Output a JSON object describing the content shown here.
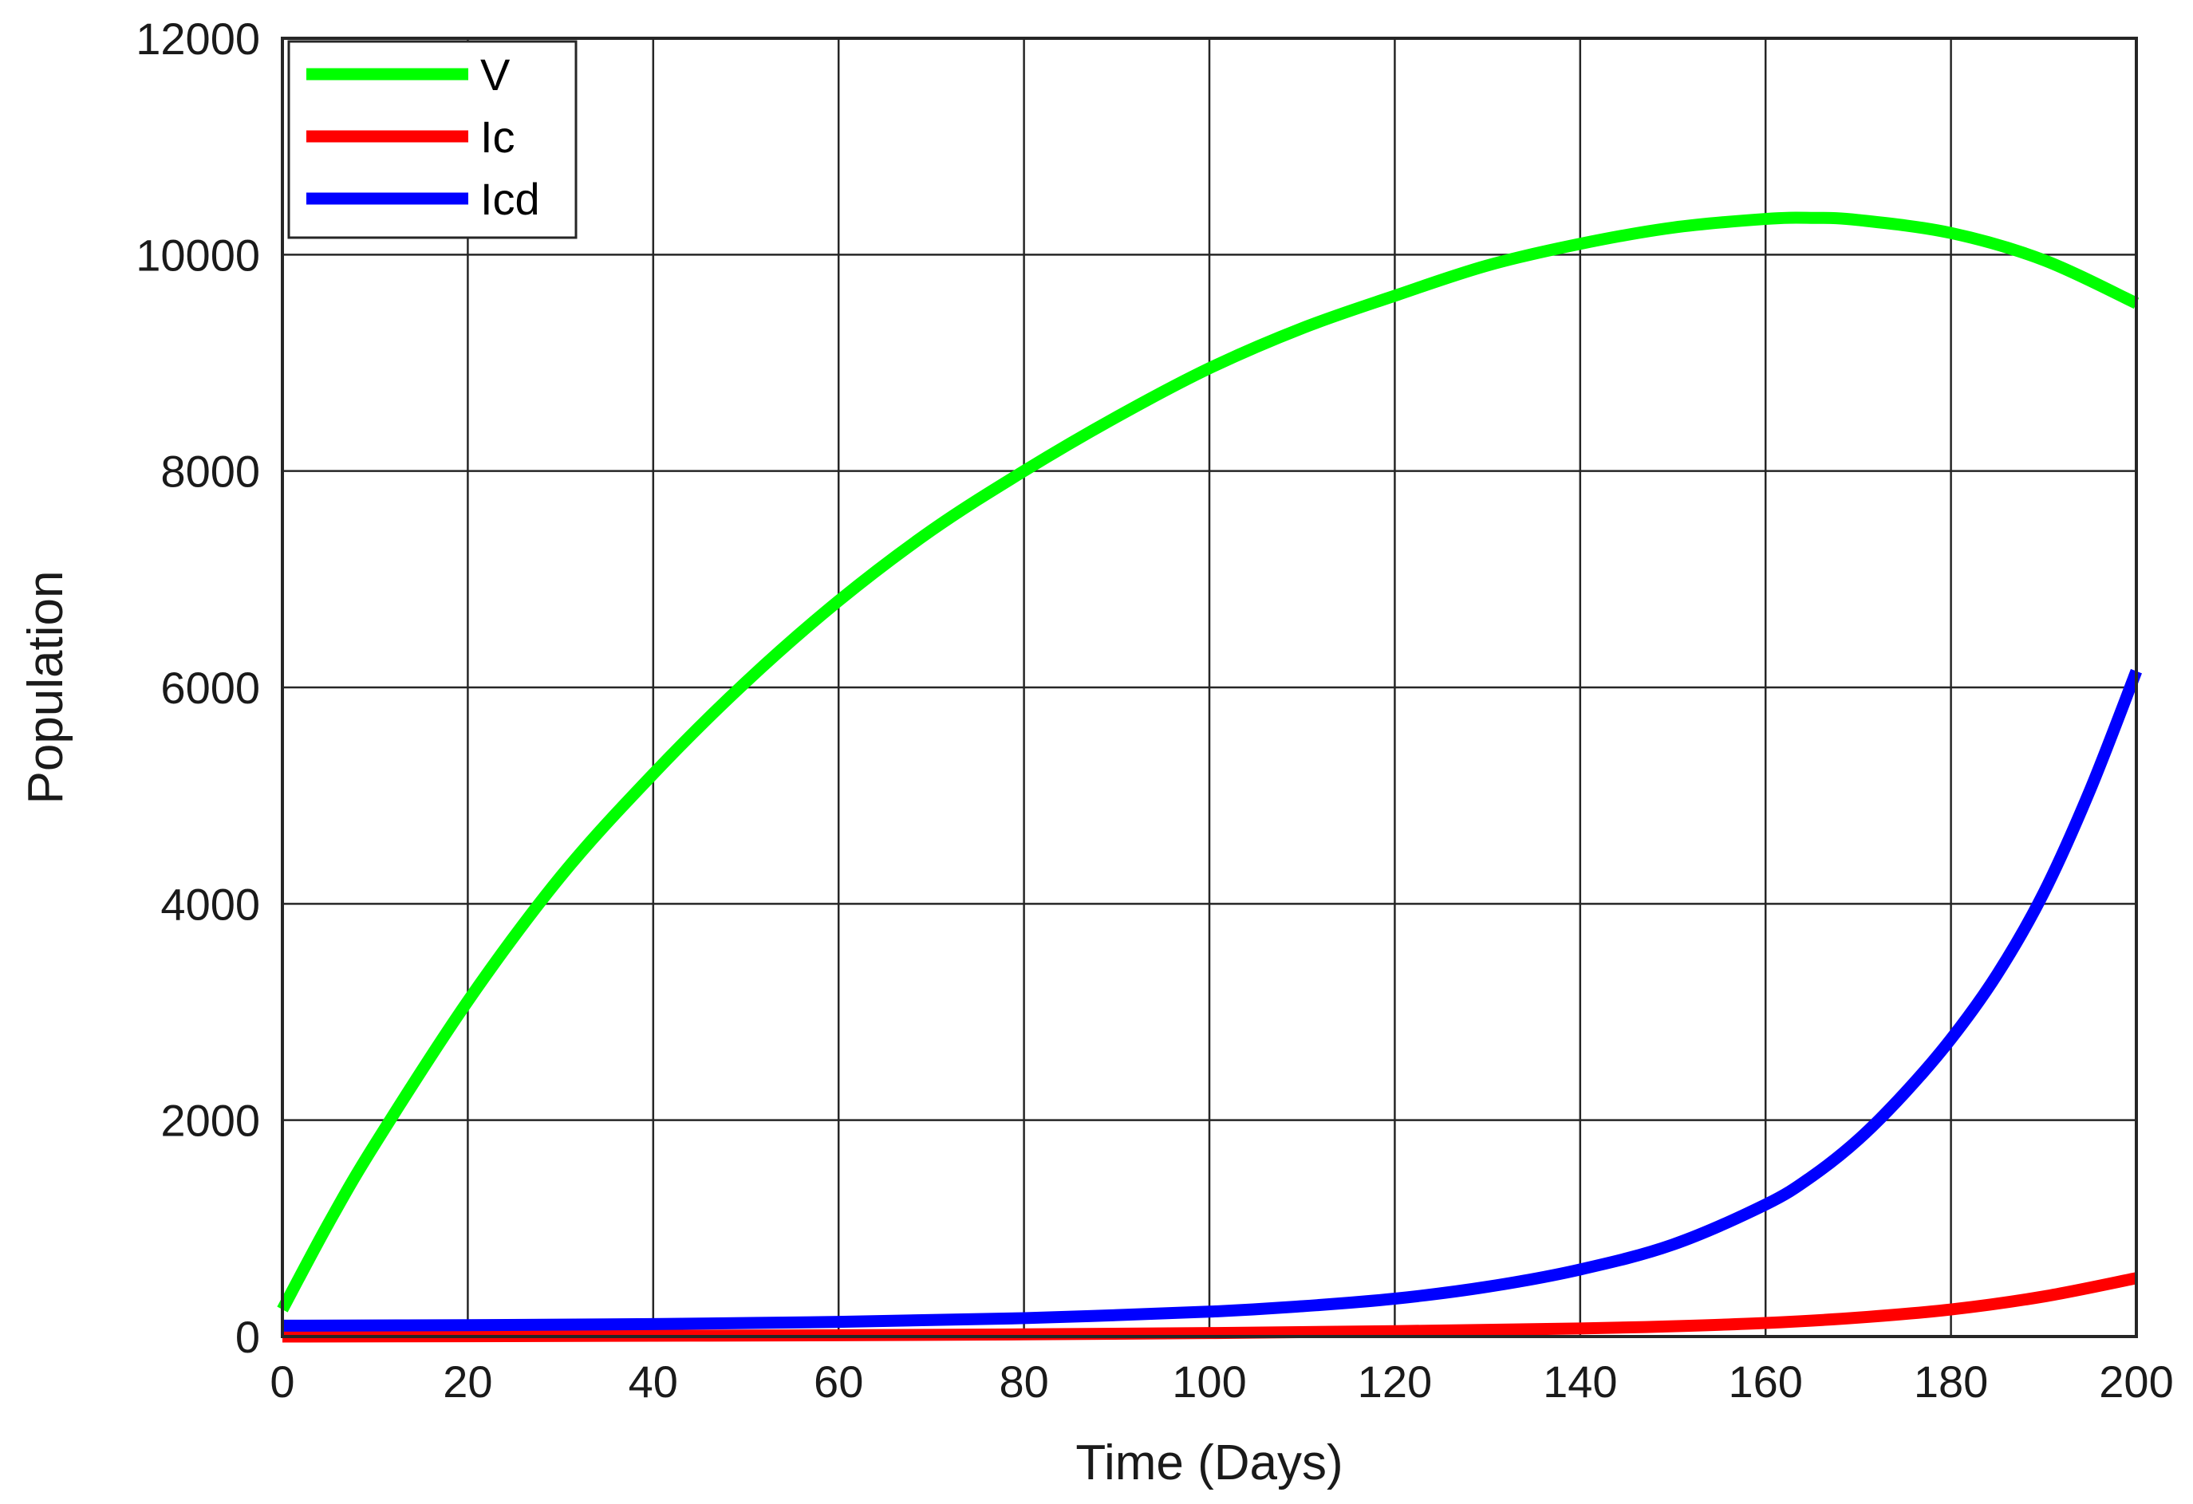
{
  "chart_data": {
    "type": "line",
    "title": "",
    "xlabel": "Time (Days)",
    "ylabel": "Population",
    "xlim": [
      0,
      200
    ],
    "ylim": [
      0,
      12000
    ],
    "xticks": [
      "0",
      "20",
      "40",
      "60",
      "80",
      "100",
      "120",
      "140",
      "160",
      "180",
      "200"
    ],
    "yticks": [
      "0",
      "2000",
      "4000",
      "6000",
      "8000",
      "10000",
      "12000"
    ],
    "grid": true,
    "legend_position": "top-left",
    "series": [
      {
        "name": "V",
        "color": "#00ff00",
        "x": [
          0,
          5,
          10,
          20,
          30,
          40,
          50,
          60,
          70,
          80,
          90,
          100,
          110,
          120,
          130,
          140,
          150,
          160,
          165,
          170,
          180,
          190,
          200
        ],
        "y": [
          250,
          1050,
          1780,
          3100,
          4250,
          5200,
          6050,
          6800,
          7450,
          8000,
          8500,
          8950,
          9320,
          9620,
          9900,
          10100,
          10250,
          10330,
          10340,
          10320,
          10200,
          9950,
          9550
        ]
      },
      {
        "name": "Ic",
        "color": "#ff0000",
        "x": [
          0,
          20,
          40,
          60,
          80,
          100,
          120,
          140,
          150,
          160,
          170,
          180,
          190,
          200
        ],
        "y": [
          0,
          3,
          7,
          12,
          20,
          32,
          50,
          75,
          95,
          125,
          175,
          250,
          370,
          540
        ]
      },
      {
        "name": "Icd",
        "color": "#0000ff",
        "x": [
          0,
          20,
          40,
          60,
          80,
          100,
          110,
          120,
          130,
          140,
          150,
          160,
          165,
          170,
          175,
          180,
          185,
          190,
          195,
          200
        ],
        "y": [
          100,
          105,
          115,
          135,
          170,
          230,
          280,
          350,
          460,
          620,
          850,
          1220,
          1480,
          1820,
          2250,
          2750,
          3350,
          4100,
          5050,
          6150
        ]
      }
    ]
  }
}
